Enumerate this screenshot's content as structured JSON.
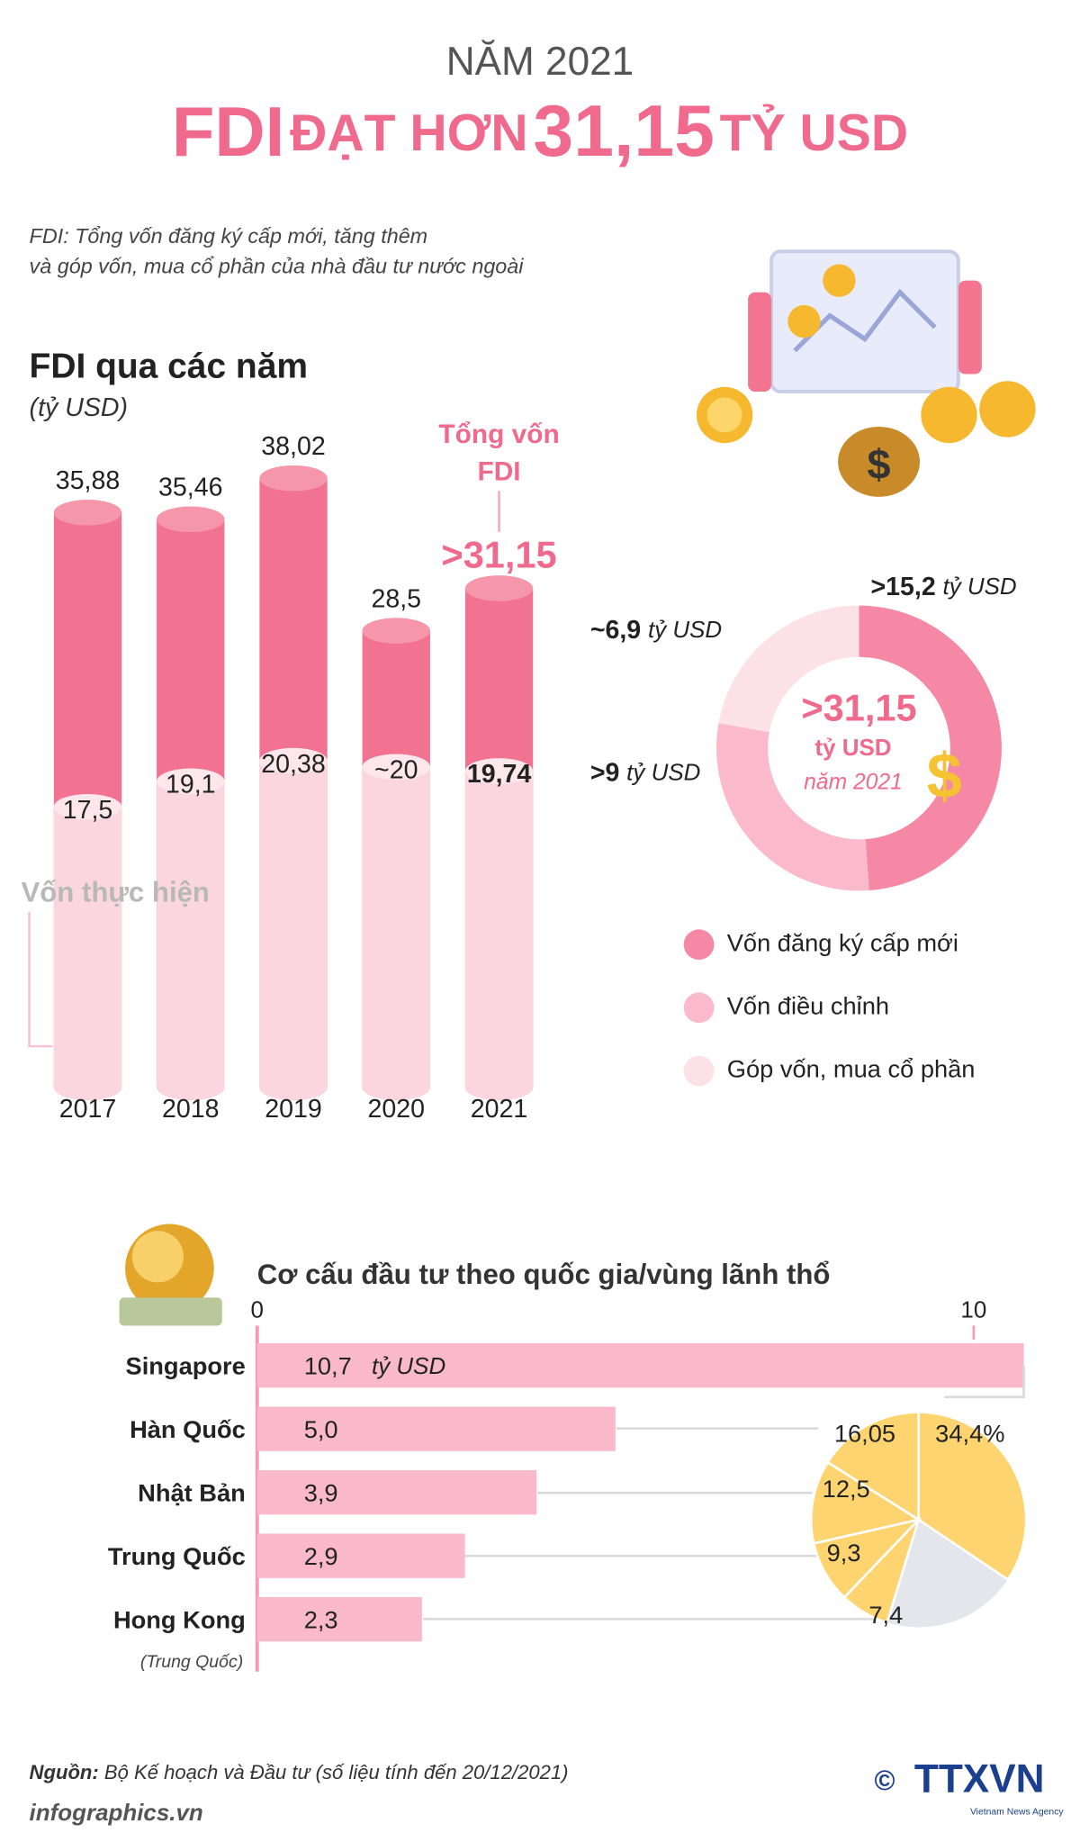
{
  "header": {
    "kicker": "NĂM 2021",
    "title": [
      "FDI",
      "ĐẠT HƠN",
      "31,15",
      "TỶ USD"
    ],
    "note": [
      "FDI: Tổng vốn đăng ký cấp mới, tăng thêm",
      "và góp vốn, mua cổ phần của nhà đầu tư nước ngoài"
    ]
  },
  "chart_data": [
    {
      "type": "bar",
      "title": "FDI qua các năm",
      "subtitle": "(tỷ USD)",
      "categories": [
        "2017",
        "2018",
        "2019",
        "2020",
        "2021"
      ],
      "series": [
        {
          "name": "Tổng vốn FDI",
          "color": "#f27391",
          "values": [
            35.88,
            35.46,
            38.02,
            28.5,
            31.15
          ],
          "value_labels": [
            "35,88",
            "35,46",
            "38,02",
            "28,5",
            ">31,15"
          ]
        },
        {
          "name": "Vốn thực hiện",
          "color": "#fbd6df",
          "values": [
            17.5,
            19.1,
            20.38,
            20,
            19.74
          ],
          "value_labels": [
            "17,5",
            "19,1",
            "20,38",
            "~20",
            "19,74"
          ]
        }
      ]
    },
    {
      "type": "donut",
      "center_label": ">31,15",
      "unit": "tỷ USD",
      "center_note": "năm 2021",
      "categories": [
        "Vốn đăng ký cấp mới",
        "Vốn điều chỉnh",
        "Góp vốn, mua cổ phần"
      ],
      "values": [
        15.2,
        9,
        6.9
      ],
      "value_labels": [
        ">15,2",
        ">9",
        "~6,9"
      ],
      "colors": [
        "#f488a5",
        "#fbbacb",
        "#fde1e9"
      ]
    },
    {
      "type": "hbar",
      "title": "Cơ cấu đầu tư theo quốc gia/vùng lãnh thổ",
      "categories": [
        "Singapore",
        "Hàn Quốc",
        "Nhật Bản",
        "Trung Quốc",
        "Hong Kong"
      ],
      "category_notes": {
        "4": "(Trung Quốc)"
      },
      "values": [
        10.7,
        5.0,
        3.9,
        2.9,
        2.3
      ],
      "value_labels": [
        "10,7",
        "5,0",
        "3,9",
        "2,9",
        "2,3"
      ],
      "unit": "tỷ USD",
      "color": "#f9b9ca",
      "xlim": [
        0,
        10.7
      ],
      "xticks": [
        0,
        10
      ]
    },
    {
      "type": "pie",
      "values": [
        34.4,
        16.05,
        12.5,
        9.3,
        7.4
      ],
      "value_labels": [
        "34,4%",
        "16,05",
        "12,5",
        "9,3",
        "7,4"
      ],
      "color": "#fdd470",
      "rest_color": "#e5e5ec"
    }
  ],
  "source": {
    "label": "Nguồn:",
    "text": "Bộ Kế hoạch và Đầu tư (số liệu tính đến 20/12/2021)"
  },
  "footer": {
    "site": "infographics.vn",
    "agency": "TTXVN",
    "agency_sub": "Vietnam News Agency"
  }
}
